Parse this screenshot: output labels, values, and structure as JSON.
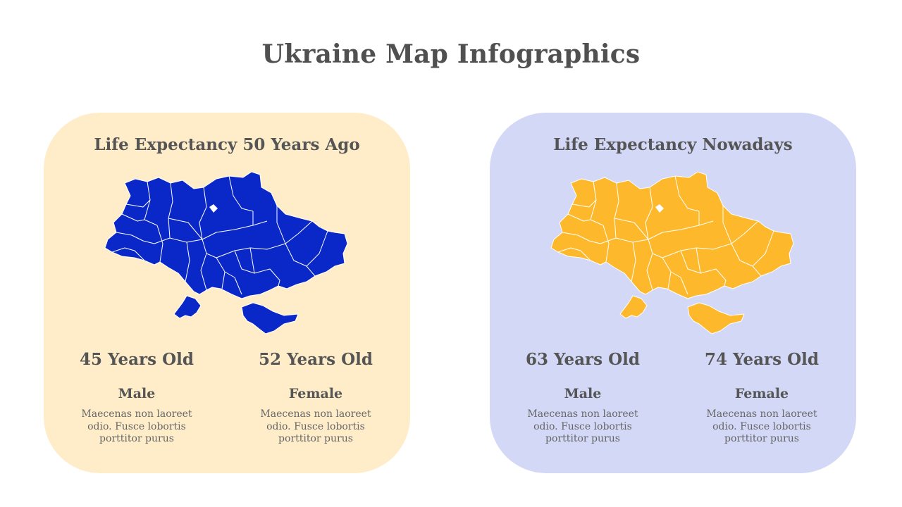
{
  "slide": {
    "title": "Ukraine Map Infographics"
  },
  "colors": {
    "left_panel_bg": "#FFEDC9",
    "right_panel_bg": "#D2D8F6",
    "left_map_fill": "#0A27C8",
    "right_map_fill": "#FDB92B",
    "region_border": "#FFFFFF"
  },
  "panels": [
    {
      "heading": "Life Expectancy 50 Years Ago",
      "map_icon": "ukraine-map",
      "stats": [
        {
          "value": "45 Years Old",
          "label": "Male",
          "description": "Maecenas non laoreet odio. Fusce lobortis porttitor purus"
        },
        {
          "value": "52 Years Old",
          "label": "Female",
          "description": "Maecenas non laoreet odio. Fusce lobortis porttitor purus"
        }
      ]
    },
    {
      "heading": "Life Expectancy Nowadays",
      "map_icon": "ukraine-map",
      "stats": [
        {
          "value": "63 Years Old",
          "label": "Male",
          "description": "Maecenas non laoreet odio. Fusce lobortis porttitor purus"
        },
        {
          "value": "74 Years Old",
          "label": "Female",
          "description": "Maecenas non laoreet odio. Fusce lobortis porttitor purus"
        }
      ]
    }
  ]
}
